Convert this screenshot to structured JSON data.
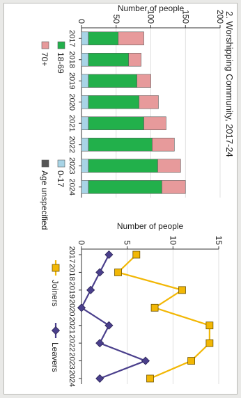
{
  "title": "2. Worshipping Community, 2017-24",
  "colors": {
    "age_unspecified": "#555555",
    "age_0_17": "#a8d4e6",
    "age_18_69": "#22b04b",
    "age_70_plus": "#e79a9b",
    "joiners": "#f2b705",
    "leavers": "#4a3f8c",
    "grid": "#d8d8d8",
    "axis": "#333333"
  },
  "chart_data": [
    {
      "type": "bar",
      "stacked": true,
      "orientation": "vertical (figure rotated 90° clockwise)",
      "categories": [
        "2017",
        "2018",
        "2019",
        "2020",
        "2021",
        "2022",
        "2023",
        "2024"
      ],
      "ylabel": "Number of people",
      "ylim": [
        0,
        200
      ],
      "yticks": [
        0,
        50,
        100,
        150,
        200
      ],
      "grid": true,
      "legend_position": "below",
      "series": [
        {
          "name": "Age unspecified",
          "color": "#555555",
          "values": [
            0,
            0,
            0,
            0,
            0,
            0,
            0,
            0
          ]
        },
        {
          "name": "0-17",
          "color": "#a8d4e6",
          "values": [
            10,
            10,
            10,
            10,
            10,
            10,
            10,
            10
          ]
        },
        {
          "name": "18-69",
          "color": "#22b04b",
          "values": [
            43,
            58,
            70,
            73,
            80,
            92,
            100,
            106
          ]
        },
        {
          "name": "70+",
          "color": "#e79a9b",
          "values": [
            37,
            18,
            20,
            28,
            32,
            32,
            33,
            34
          ]
        }
      ]
    },
    {
      "type": "line",
      "orientation": "vertical (figure rotated 90° clockwise)",
      "x": [
        "2017",
        "2018",
        "2019",
        "2020",
        "2021",
        "2022",
        "2023",
        "2024"
      ],
      "ylabel": "Number of people",
      "ylim": [
        0,
        15
      ],
      "yticks": [
        0,
        5,
        10,
        15
      ],
      "grid": true,
      "legend_position": "below",
      "series": [
        {
          "name": "Joiners",
          "color": "#f2b705",
          "marker": "square",
          "values": [
            6,
            4,
            11,
            8,
            14,
            14,
            12,
            7.5
          ]
        },
        {
          "name": "Leavers",
          "color": "#4a3f8c",
          "marker": "diamond",
          "values": [
            3,
            2,
            1,
            0,
            3,
            2,
            7,
            2
          ]
        }
      ]
    }
  ]
}
